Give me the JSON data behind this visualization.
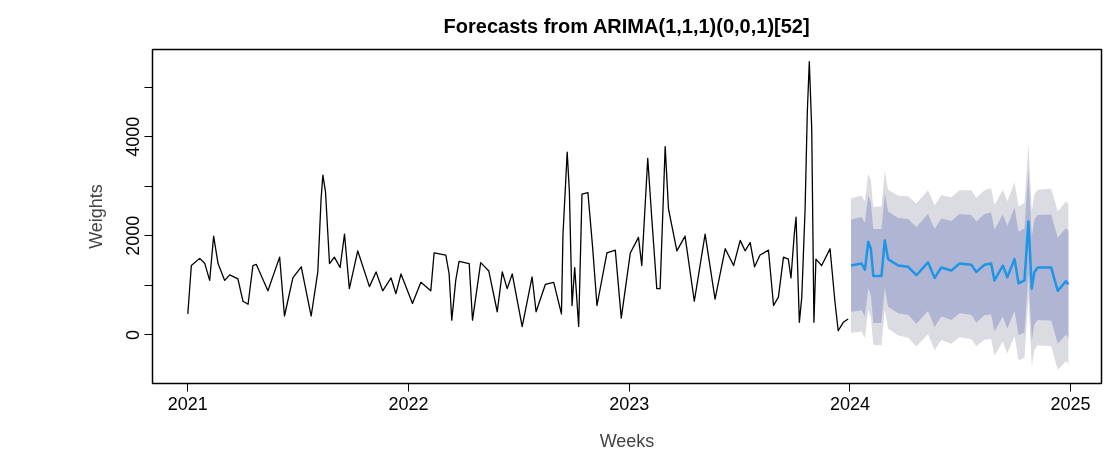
{
  "chart_data": {
    "type": "line",
    "title": "Forecasts from ARIMA(1,1,1)(0,0,1)[52]",
    "xlabel": "Weeks",
    "ylabel": "Weights",
    "xlim": [
      2020.84,
      2025.14
    ],
    "ylim": [
      -980,
      5760
    ],
    "xticks": [
      2021,
      2022,
      2023,
      2024,
      2025
    ],
    "yticks": [
      0,
      {
        "value": 1000,
        "label": null
      },
      2000,
      {
        "value": 3000,
        "label": null
      },
      4000,
      {
        "value": 5000,
        "label": null
      }
    ],
    "grid": false,
    "line_style": "solid",
    "marker": "none",
    "series": [
      {
        "color": "#dbdbe2",
        "x": [
          2024.005,
          2024.053,
          2024.068,
          2024.083,
          2024.095,
          2024.106,
          2024.143,
          2024.158,
          2024.173,
          2024.219,
          2024.264,
          2024.301,
          2024.354,
          2024.384,
          2024.414,
          2024.46,
          2024.497,
          2024.55,
          2024.573,
          2024.61,
          2024.64,
          2024.655,
          2024.693,
          2024.713,
          2024.746,
          2024.764,
          2024.791,
          2024.809,
          2024.824,
          2024.836,
          2024.851,
          2024.912,
          2024.942,
          2024.979,
          2024.99
        ],
        "lower": [
          40,
          70,
          -65,
          500,
          360,
          -200,
          -210,
          508,
          130,
          -10,
          -55,
          -235,
          15,
          -310,
          -100,
          -180,
          -40,
          -85,
          -228,
          -95,
          -80,
          -420,
          -130,
          -375,
          -20,
          -510,
          -460,
          730,
          -636,
          -298,
          -210,
          -230,
          -710,
          -525,
          -592
        ],
        "upper": [
          2760,
          2810,
          2700,
          3260,
          3120,
          2580,
          2590,
          3310,
          2930,
          2810,
          2800,
          2650,
          2920,
          2610,
          2820,
          2780,
          2920,
          2920,
          2770,
          2920,
          2960,
          2620,
          2930,
          2700,
          3080,
          2590,
          2660,
          3850,
          2500,
          2840,
          2930,
          2950,
          2490,
          2700,
          2630
        ],
        "values": [
          null,
          null,
          null,
          null,
          null,
          null,
          null,
          null,
          null,
          null,
          null,
          null,
          null,
          null,
          null,
          null,
          null,
          null,
          null,
          null,
          null,
          null,
          null,
          null,
          null,
          null,
          null,
          null,
          null,
          null,
          null,
          null,
          null,
          null,
          null
        ]
      },
      {
        "color": "#b1b5d4",
        "x": [
          2024.005,
          2024.053,
          2024.068,
          2024.083,
          2024.095,
          2024.106,
          2024.143,
          2024.158,
          2024.173,
          2024.219,
          2024.264,
          2024.301,
          2024.354,
          2024.384,
          2024.414,
          2024.46,
          2024.497,
          2024.55,
          2024.573,
          2024.61,
          2024.64,
          2024.655,
          2024.693,
          2024.713,
          2024.746,
          2024.764,
          2024.791,
          2024.809,
          2024.824,
          2024.836,
          2024.851,
          2024.912,
          2024.942,
          2024.979,
          2024.99
        ],
        "lower": [
          470,
          500,
          375,
          940,
          800,
          240,
          240,
          958,
          570,
          440,
          405,
          225,
          485,
          160,
          370,
          300,
          440,
          405,
          252,
          395,
          410,
          70,
          370,
          125,
          490,
          0,
          50,
          1240,
          -116,
          212,
          300,
          290,
          -180,
          5,
          -62
        ],
        "upper": [
          2330,
          2380,
          2260,
          2820,
          2680,
          2140,
          2140,
          2860,
          2490,
          2360,
          2340,
          2180,
          2440,
          2140,
          2350,
          2300,
          2440,
          2420,
          2290,
          2440,
          2470,
          2130,
          2430,
          2200,
          2570,
          2080,
          2150,
          3340,
          1980,
          2330,
          2420,
          2430,
          1960,
          2160,
          2100
        ],
        "values": [
          null,
          null,
          null,
          null,
          null,
          null,
          null,
          null,
          null,
          null,
          null,
          null,
          null,
          null,
          null,
          null,
          null,
          null,
          null,
          null,
          null,
          null,
          null,
          null,
          null,
          null,
          null,
          null,
          null,
          null,
          null,
          null,
          null,
          null,
          null
        ]
      },
      {
        "color": "#000000",
        "x": [
          2021.0,
          2021.016,
          2021.054,
          2021.077,
          2021.099,
          2021.117,
          2021.137,
          2021.167,
          2021.19,
          2021.227,
          2021.25,
          2021.273,
          2021.295,
          2021.31,
          2021.363,
          2021.416,
          2021.438,
          2021.476,
          2021.514,
          2021.559,
          2021.589,
          2021.604,
          2021.612,
          2021.624,
          2021.642,
          2021.664,
          2021.69,
          2021.71,
          2021.732,
          2021.77,
          2021.823,
          2021.853,
          2021.883,
          2021.921,
          2021.943,
          2021.966,
          2022.018,
          2022.056,
          2022.101,
          2022.116,
          2022.169,
          2022.184,
          2022.196,
          2022.214,
          2022.229,
          2022.275,
          2022.29,
          2022.327,
          2022.364,
          2022.402,
          2022.425,
          2022.447,
          2022.47,
          2022.515,
          2022.56,
          2022.578,
          2022.62,
          2022.658,
          2022.693,
          2022.7,
          2022.719,
          2022.729,
          2022.741,
          2022.753,
          2022.771,
          2022.786,
          2022.813,
          2022.834,
          2022.854,
          2022.899,
          2022.937,
          2022.964,
          2023.005,
          2023.042,
          2023.057,
          2023.084,
          2023.102,
          2023.125,
          2023.14,
          2023.163,
          2023.178,
          2023.216,
          2023.253,
          2023.295,
          2023.344,
          2023.389,
          2023.435,
          2023.473,
          2023.503,
          2023.525,
          2023.548,
          2023.568,
          2023.593,
          2023.631,
          2023.654,
          2023.676,
          2023.699,
          2023.721,
          2023.733,
          2023.748,
          2023.756,
          2023.771,
          2023.782,
          2023.797,
          2023.807,
          2023.816,
          2023.827,
          2023.837,
          2023.846,
          2023.872,
          2023.91,
          2023.932,
          2023.947,
          2023.97,
          2023.992
        ],
        "values": [
          425,
          1400,
          1545,
          1440,
          1100,
          1995,
          1440,
          1100,
          1213,
          1130,
          680,
          620,
          1400,
          1425,
          890,
          1570,
          382,
          1150,
          1375,
          382,
          1272,
          2758,
          3224,
          2885,
          1440,
          1570,
          1360,
          2036,
          934,
          1697,
          975,
          1272,
          890,
          1150,
          832,
          1230,
          636,
          1061,
          890,
          1654,
          1612,
          1230,
          298,
          1100,
          1486,
          1440,
          298,
          1460,
          1290,
          468,
          1272,
          934,
          1230,
          170,
          1170,
          468,
          1018,
          1061,
          425,
          2036,
          3690,
          2885,
          594,
          1360,
          170,
          2842,
          2870,
          1781,
          594,
          1654,
          1712,
          340,
          1654,
          1969,
          1400,
          3562,
          2376,
          934,
          934,
          3800,
          2545,
          1697,
          1995,
          680,
          2036,
          722,
          1740,
          1400,
          1908,
          1697,
          1866,
          1375,
          1612,
          1712,
          594,
          764,
          1570,
          1530,
          1150,
          2036,
          2376,
          255,
          764,
          2545,
          4496,
          5514,
          4158,
          255,
          1530,
          1400,
          1740,
          680,
          85,
          255,
          323
        ]
      },
      {
        "color": "#1e96e6",
        "x": [
          2024.005,
          2024.053,
          2024.068,
          2024.083,
          2024.095,
          2024.106,
          2024.143,
          2024.158,
          2024.173,
          2024.219,
          2024.264,
          2024.301,
          2024.354,
          2024.384,
          2024.414,
          2024.46,
          2024.497,
          2024.55,
          2024.573,
          2024.61,
          2024.64,
          2024.655,
          2024.693,
          2024.713,
          2024.746,
          2024.764,
          2024.791,
          2024.809,
          2024.824,
          2024.836,
          2024.851,
          2024.912,
          2024.942,
          2024.979,
          2024.99
        ],
        "values": [
          1400,
          1440,
          1315,
          1880,
          1740,
          1190,
          1190,
          1908,
          1530,
          1400,
          1375,
          1205,
          1465,
          1150,
          1360,
          1300,
          1440,
          1415,
          1272,
          1415,
          1440,
          1100,
          1400,
          1165,
          1530,
          1040,
          1100,
          2290,
          934,
          1272,
          1360,
          1360,
          890,
          1085,
          1018
        ]
      }
    ]
  }
}
